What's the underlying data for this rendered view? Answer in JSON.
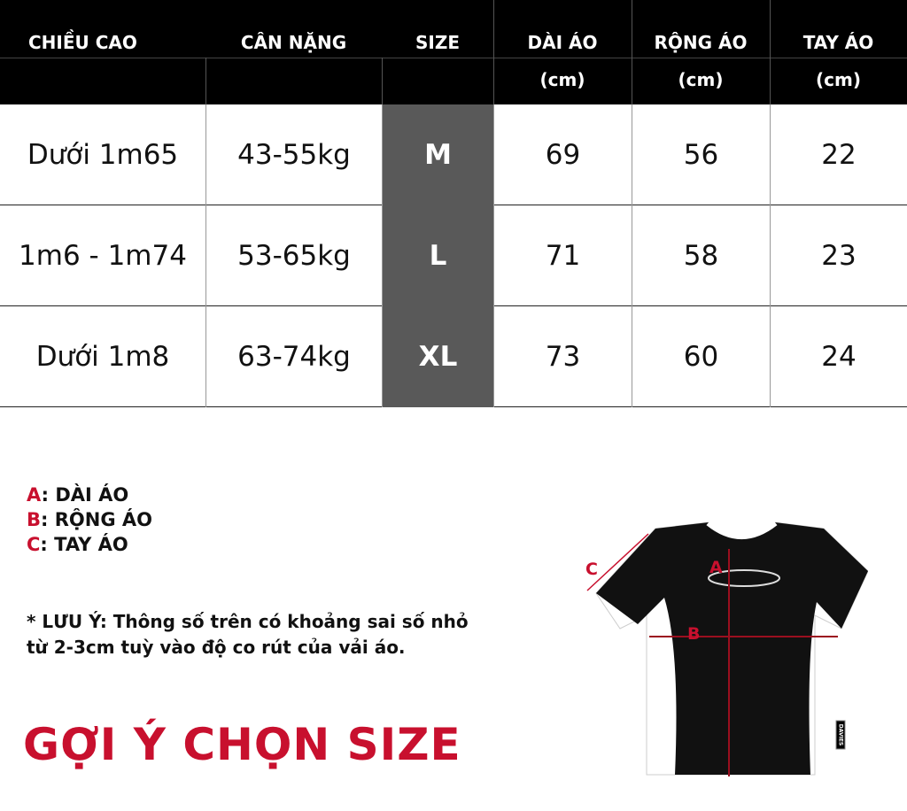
{
  "table": {
    "headers": [
      {
        "line1": "CHIỀU CAO",
        "line2": ""
      },
      {
        "line1": "CÂN NẶNG",
        "line2": ""
      },
      {
        "line1": "SIZE",
        "line2": ""
      },
      {
        "line1": "DÀI ÁO",
        "line2": "(cm)"
      },
      {
        "line1": "RỘNG ÁO",
        "line2": "(cm)"
      },
      {
        "line1": "TAY ÁO",
        "line2": "(cm)"
      }
    ],
    "rows": [
      [
        "Dưới 1m65",
        "43-55kg",
        "M",
        "69",
        "56",
        "22"
      ],
      [
        "1m6 - 1m74",
        "53-65kg",
        "L",
        "71",
        "58",
        "23"
      ],
      [
        "Dưới 1m8",
        "63-74kg",
        "XL",
        "73",
        "60",
        "24"
      ]
    ]
  },
  "legend": [
    {
      "key": "A",
      "text": ": DÀI ÁO"
    },
    {
      "key": "B",
      "text": ": RỘNG ÁO"
    },
    {
      "key": "C",
      "text": ": TAY ÁO"
    }
  ],
  "note": {
    "line1": "* LƯU Ý: Thông số trên có khoảng sai số nhỏ",
    "line2": "từ 2-3cm tuỳ vào độ co rút của vải áo."
  },
  "title": "GỢI Ý CHỌN SIZE",
  "diagram": {
    "labels": {
      "a": "A",
      "b": "B",
      "c": "C"
    },
    "brand_tag": "DAVIES"
  },
  "colors": {
    "accent": "#c8102e",
    "header_bg": "#000000",
    "size_col": "#595959"
  }
}
